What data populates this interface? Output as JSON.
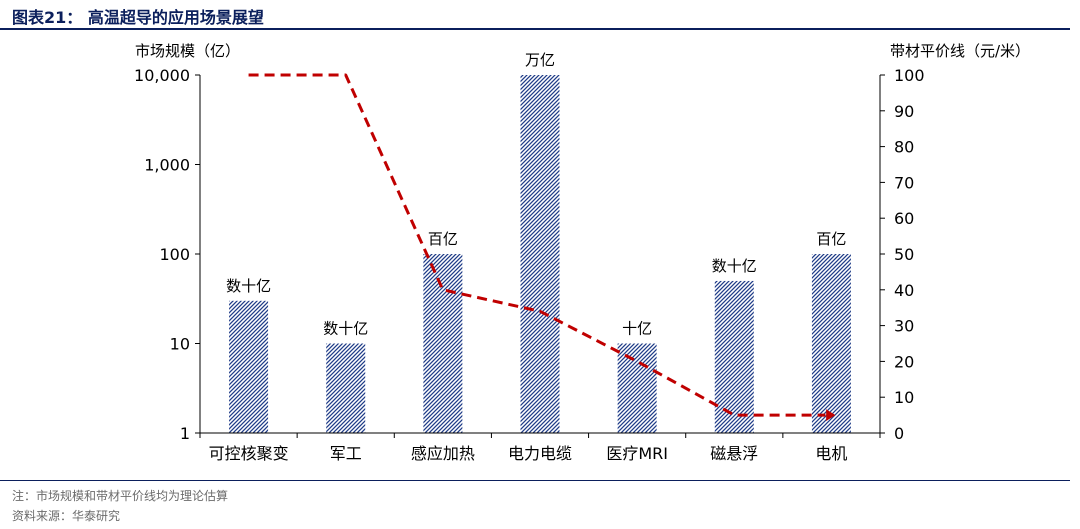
{
  "figure": {
    "title": "图表21：  高温超导的应用场景展望",
    "note": "注：市场规模和带材平价线均为理论估算",
    "source": "资料来源：华泰研究"
  },
  "chart_data": {
    "type": "bar",
    "categories": [
      "可控核聚变",
      "军工",
      "感应加热",
      "电力电缆",
      "医疗MRI",
      "磁悬浮",
      "电机"
    ],
    "series": [
      {
        "values": [
          30,
          10,
          100,
          10000,
          10,
          50,
          100
        ],
        "data_labels": [
          "数十亿",
          "数十亿",
          "百亿",
          "万亿",
          "十亿",
          "数十亿",
          "百亿"
        ],
        "axis": "left",
        "color": "#1f3c88"
      },
      {
        "values": [
          100,
          100,
          40,
          34,
          20,
          5,
          5
        ],
        "axis": "right",
        "type": "line",
        "color": "#c00000"
      }
    ],
    "ylabel": "市场规模（亿）",
    "ylabel_right": "带材平价线（元/米）",
    "y_scale": "log",
    "ylim": [
      1,
      10000
    ],
    "y_ticks": [
      "1",
      "10",
      "100",
      "1,000",
      "10,000"
    ],
    "y_right_lim": [
      0,
      100
    ],
    "y_right_ticks": [
      "0",
      "10",
      "20",
      "30",
      "40",
      "50",
      "60",
      "70",
      "80",
      "90",
      "100"
    ],
    "grid": false,
    "legend": "none"
  }
}
